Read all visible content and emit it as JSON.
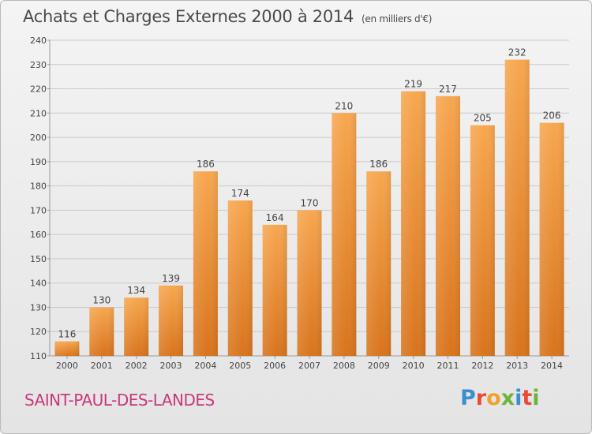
{
  "header": {
    "title": "Achats et Charges Externes 2000 à 2014",
    "subtitle": "(en milliers d'€)"
  },
  "footer": {
    "commune": "SAINT-PAUL-DES-LANDES",
    "logo_letters": [
      "P",
      "r",
      "o",
      "x",
      "i",
      "t",
      "i"
    ],
    "logo_colors": [
      "#3b8fd1",
      "#e94b35",
      "#f1a02b",
      "#6cb43f",
      "#3b8fd1",
      "#e94b35",
      "#6cb43f"
    ]
  },
  "chart_data": {
    "type": "bar",
    "categories": [
      "2000",
      "2001",
      "2002",
      "2003",
      "2004",
      "2005",
      "2006",
      "2007",
      "2008",
      "2009",
      "2010",
      "2011",
      "2012",
      "2013",
      "2014"
    ],
    "values": [
      116,
      130,
      134,
      139,
      186,
      174,
      164,
      170,
      210,
      186,
      219,
      217,
      205,
      232,
      206
    ],
    "ylim": [
      110,
      240
    ],
    "yticks": [
      110,
      120,
      130,
      140,
      150,
      160,
      170,
      180,
      190,
      200,
      210,
      220,
      230,
      240
    ],
    "bar_color": "#f0933a",
    "grid": true,
    "value_labels": true
  }
}
